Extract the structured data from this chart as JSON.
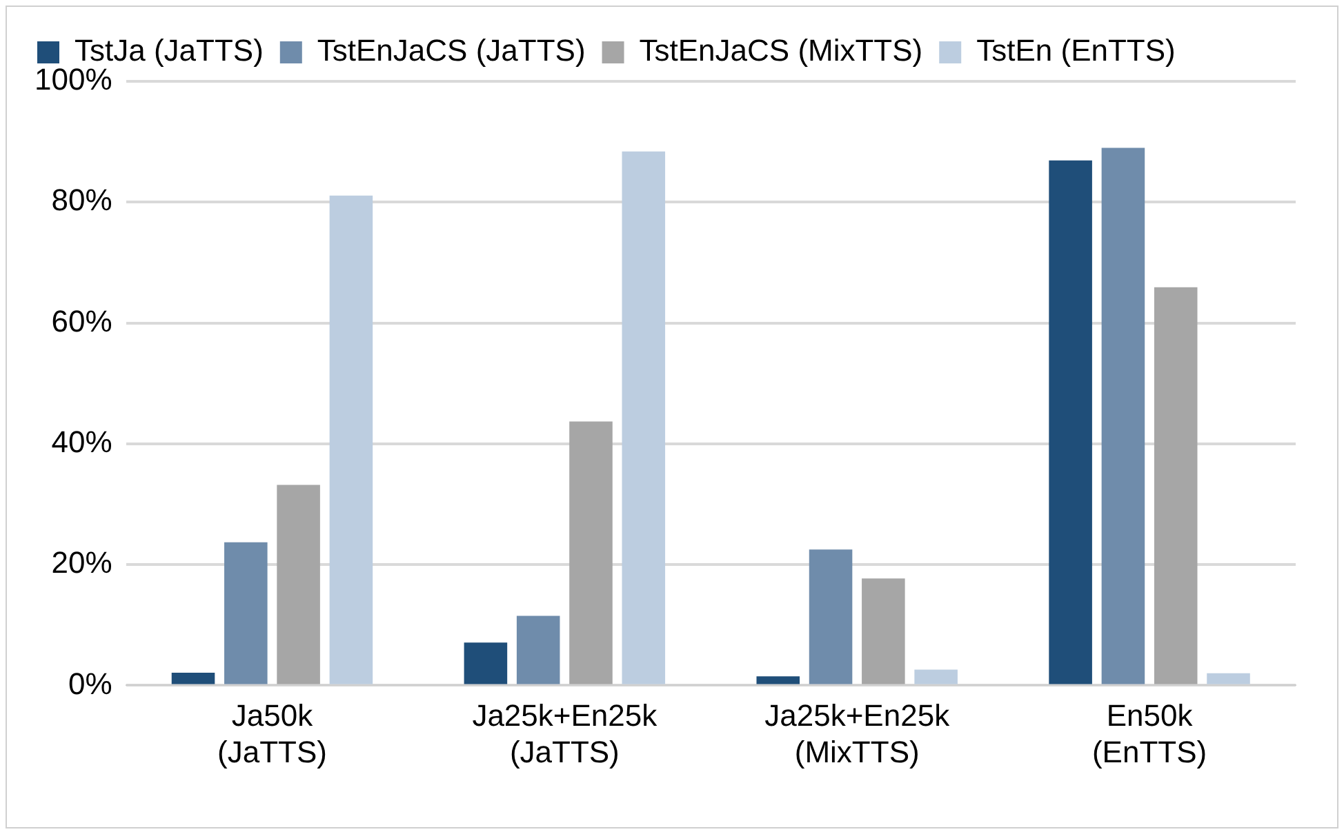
{
  "chart_data": {
    "type": "bar",
    "categories": [
      "Ja50k\n(JaTTS)",
      "Ja25k+En25k\n(JaTTS)",
      "Ja25k+En25k\n(MixTTS)",
      "En50k\n(EnTTS)"
    ],
    "series": [
      {
        "name": "TstJa (JaTTS)",
        "color": "#1f4e79",
        "values": [
          2.1,
          7.1,
          1.5,
          86.9
        ]
      },
      {
        "name": "TstEnJaCS (JaTTS)",
        "color": "#6f8cab",
        "values": [
          23.7,
          11.5,
          22.5,
          89.0
        ]
      },
      {
        "name": "TstEnJaCS (MixTTS)",
        "color": "#a6a6a6",
        "values": [
          33.2,
          43.7,
          17.7,
          65.9
        ]
      },
      {
        "name": "TstEn (EnTTS)",
        "color": "#bccde0",
        "values": [
          81.1,
          88.4,
          2.6,
          2.0
        ]
      }
    ],
    "ylim": [
      0,
      100
    ],
    "yticks": [
      {
        "value": 0,
        "label": "0%"
      },
      {
        "value": 20,
        "label": "20%"
      },
      {
        "value": 40,
        "label": "40%"
      },
      {
        "value": 60,
        "label": "60%"
      },
      {
        "value": 80,
        "label": "80%"
      },
      {
        "value": 100,
        "label": "100%"
      }
    ],
    "grid": "y",
    "legend": "top"
  }
}
